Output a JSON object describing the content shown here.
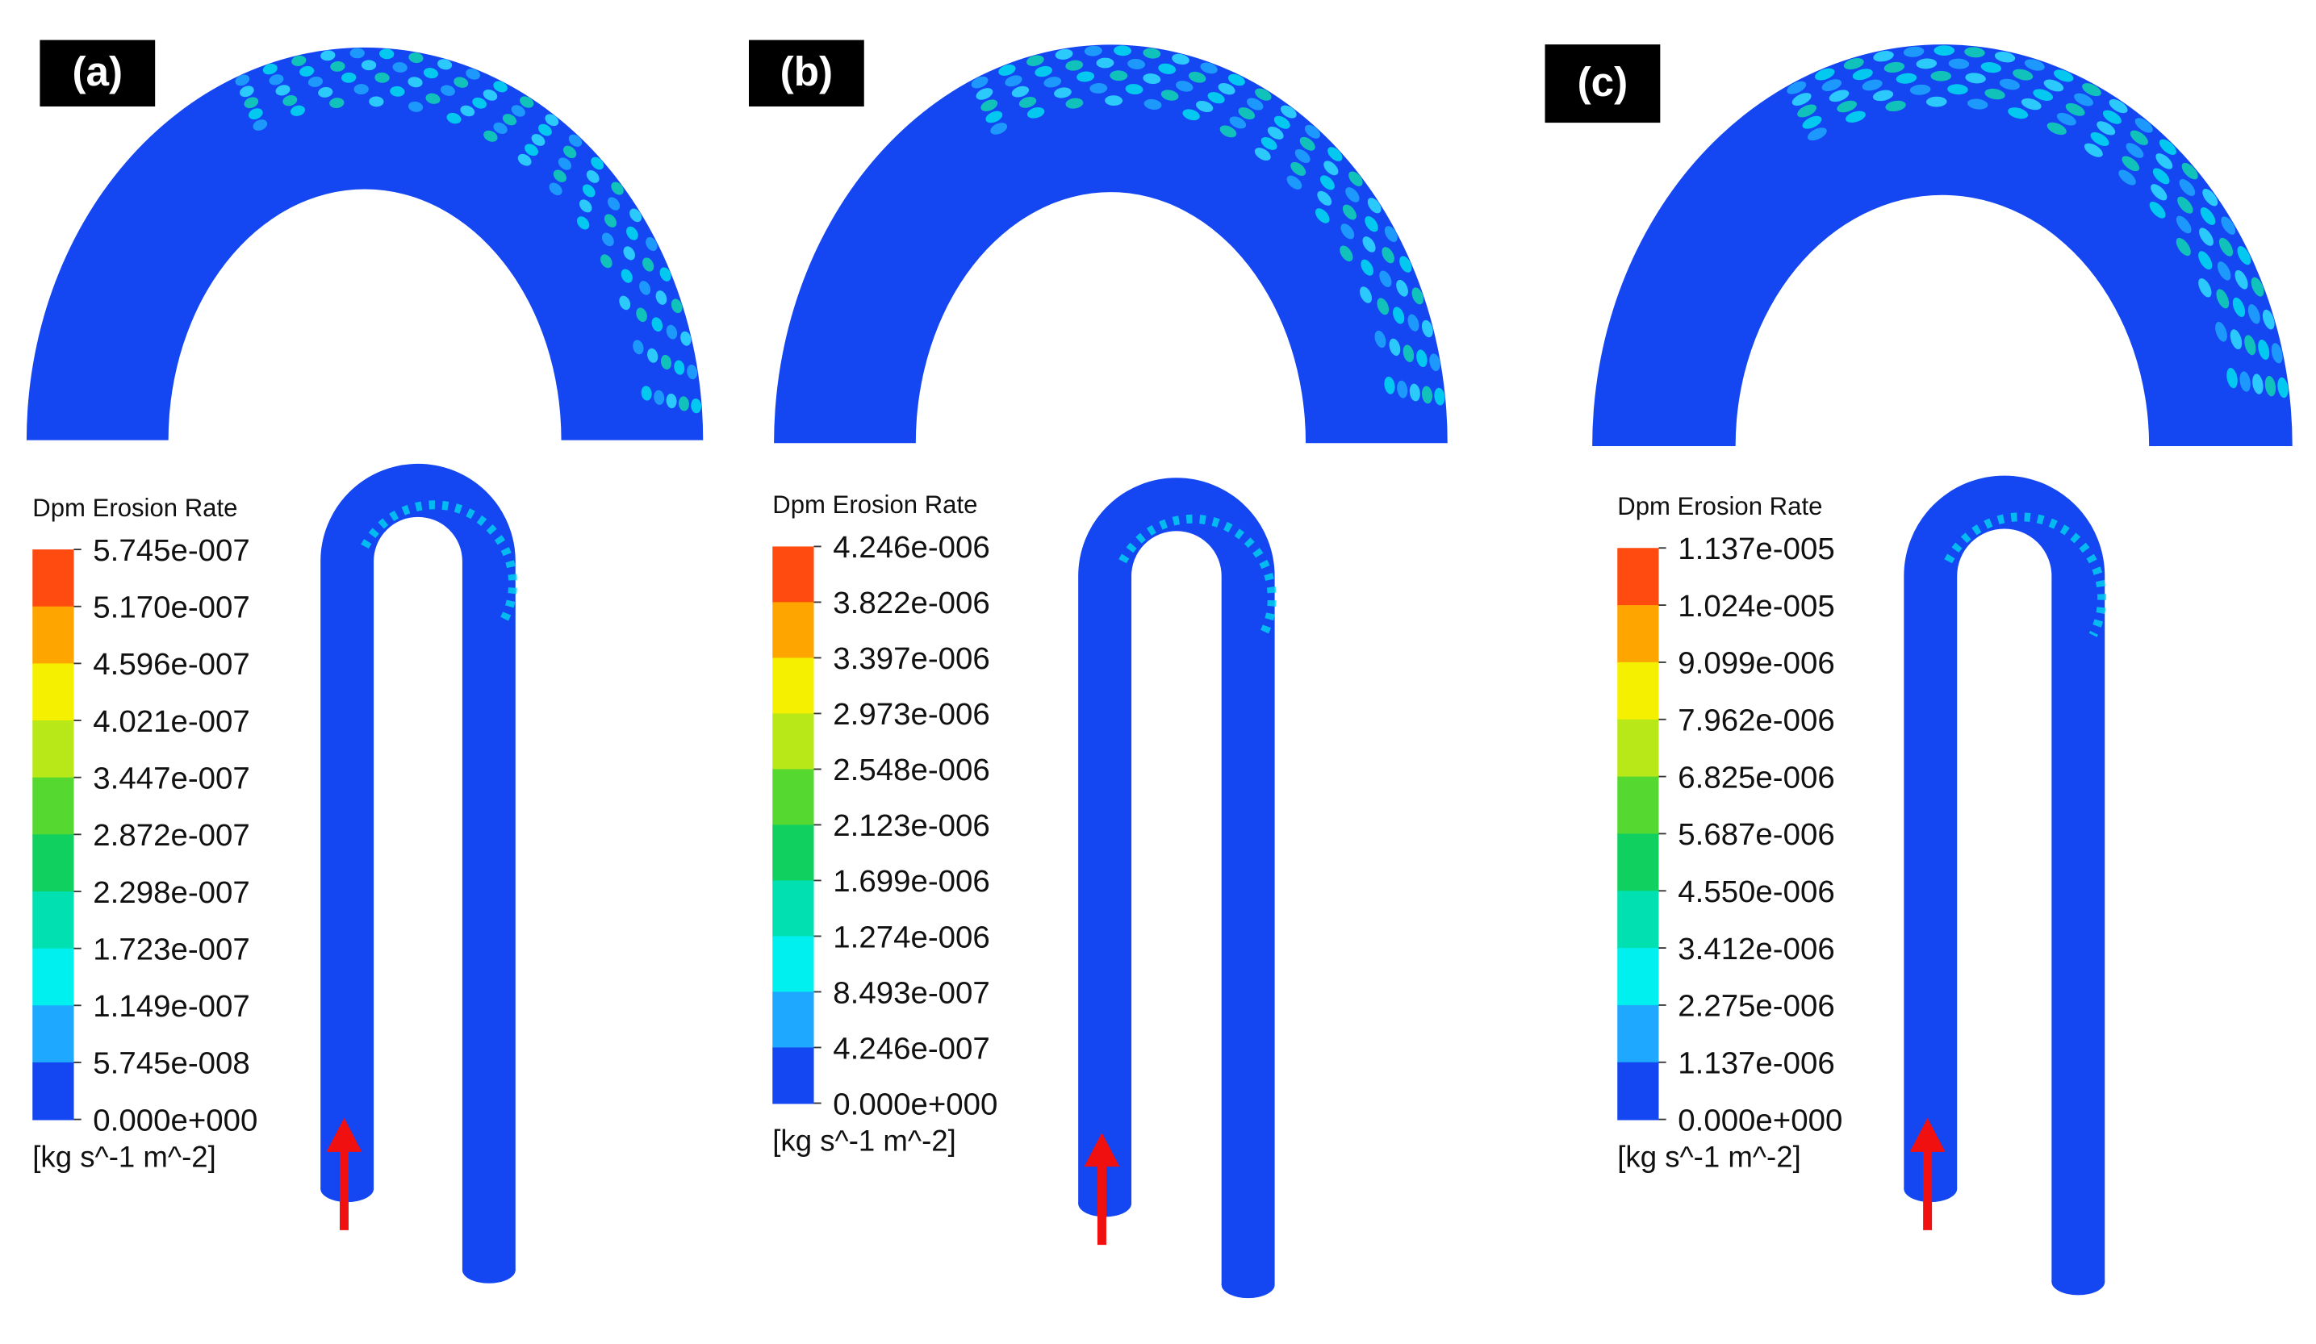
{
  "panels": [
    {
      "label": "(a)",
      "legend": {
        "title": "Dpm Erosion Rate",
        "ticks": [
          "5.745e-007",
          "5.170e-007",
          "4.596e-007",
          "4.021e-007",
          "3.447e-007",
          "2.872e-007",
          "2.298e-007",
          "1.723e-007",
          "1.149e-007",
          "5.745e-008",
          "0.000e+000"
        ],
        "unit": "[kg s^-1 m^-2]"
      }
    },
    {
      "label": "(b)",
      "legend": {
        "title": "Dpm Erosion Rate",
        "ticks": [
          "4.246e-006",
          "3.822e-006",
          "3.397e-006",
          "2.973e-006",
          "2.548e-006",
          "2.123e-006",
          "1.699e-006",
          "1.274e-006",
          "8.493e-007",
          "4.246e-007",
          "0.000e+000"
        ],
        "unit": "[kg s^-1 m^-2]"
      }
    },
    {
      "label": "(c)",
      "legend": {
        "title": "Dpm Erosion Rate",
        "ticks": [
          "1.137e-005",
          "1.024e-005",
          "9.099e-006",
          "7.962e-006",
          "6.825e-006",
          "5.687e-006",
          "4.550e-006",
          "3.412e-006",
          "2.275e-006",
          "1.137e-006",
          "0.000e+000"
        ],
        "unit": "[kg s^-1 m^-2]"
      }
    }
  ]
}
